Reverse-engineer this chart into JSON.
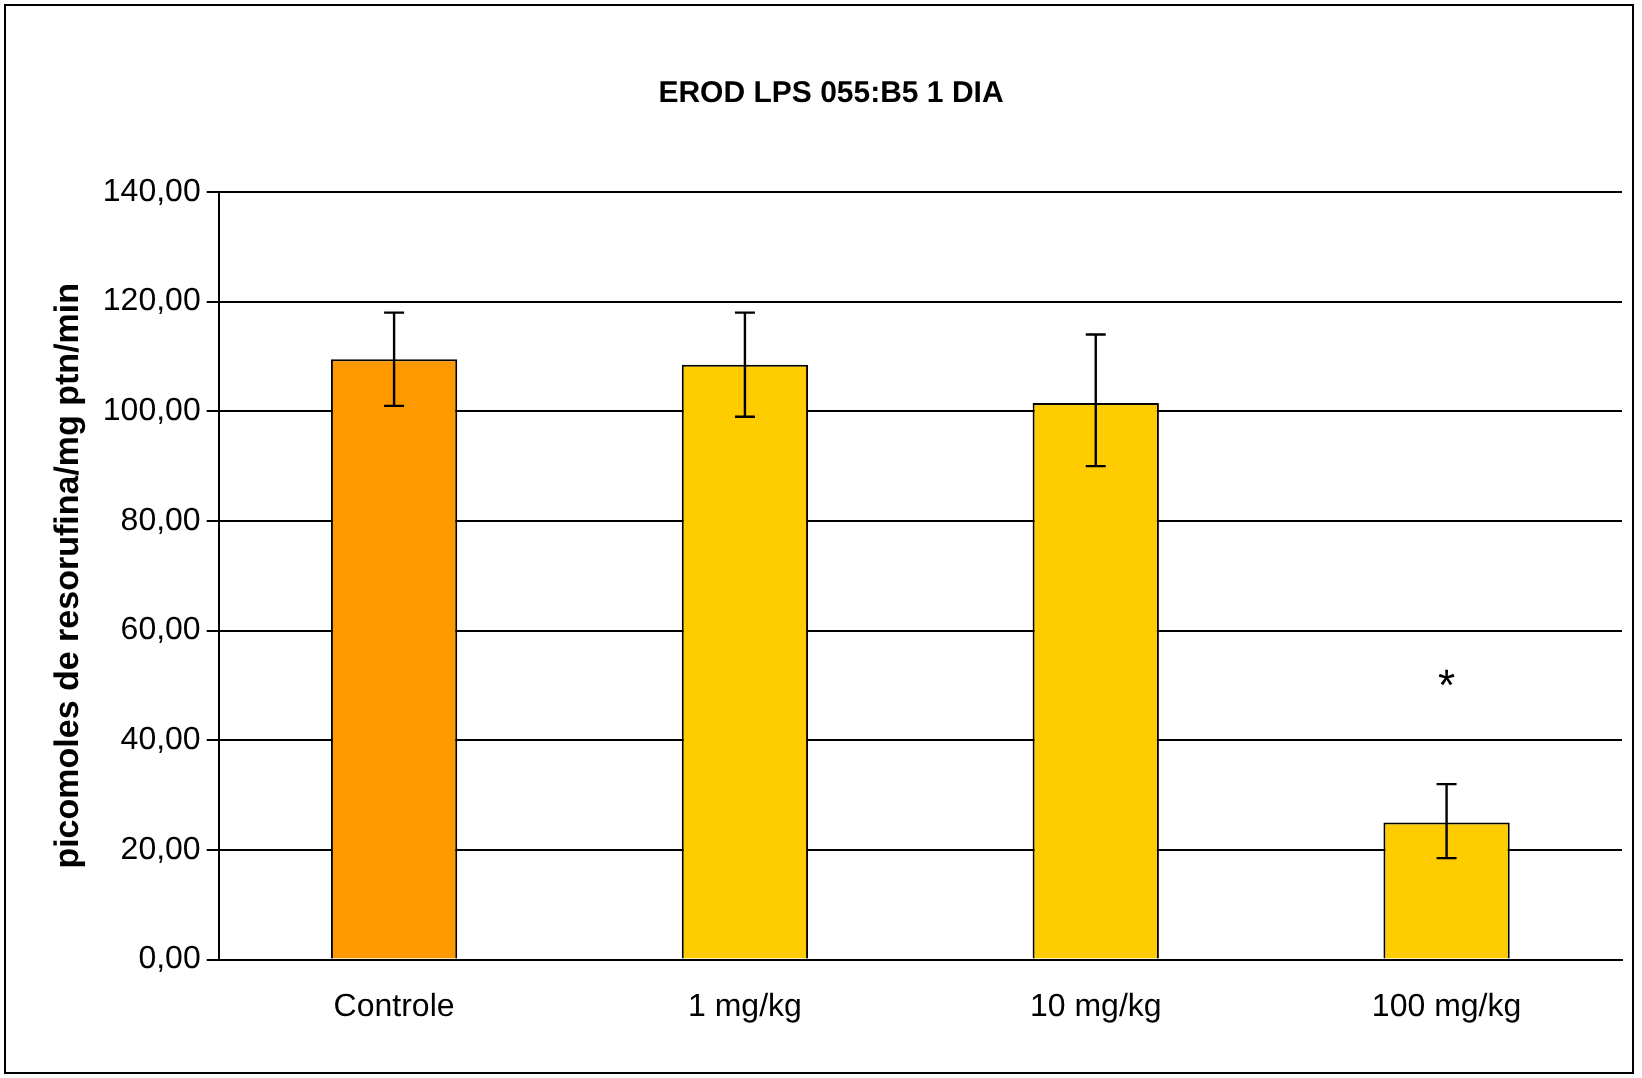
{
  "chart_data": {
    "type": "bar",
    "title": "EROD LPS 055:B5 1 DIA",
    "ylabel": "picomoles de resorufina/mg ptn/min",
    "categories": [
      "Controle",
      "1 mg/kg",
      "10 mg/kg",
      "100 mg/kg"
    ],
    "values": [
      109.5,
      108.5,
      101.5,
      25
    ],
    "colors": [
      "#ff9900",
      "#ffcc00",
      "#ffcc00",
      "#ffcc00"
    ],
    "errors": [
      [
        101,
        118
      ],
      [
        99,
        118
      ],
      [
        90,
        114
      ],
      [
        18.5,
        32
      ]
    ],
    "ylim": [
      0,
      140
    ],
    "yticks": [
      {
        "value": 0,
        "label": "0,00"
      },
      {
        "value": 20,
        "label": "20,00"
      },
      {
        "value": 40,
        "label": "40,00"
      },
      {
        "value": 60,
        "label": "60,00"
      },
      {
        "value": 80,
        "label": "80,00"
      },
      {
        "value": 100,
        "label": "100,00"
      },
      {
        "value": 120,
        "label": "120,00"
      },
      {
        "value": 140,
        "label": "140,00"
      }
    ],
    "grid": "y",
    "legend": false,
    "annotations": [
      "*"
    ]
  }
}
